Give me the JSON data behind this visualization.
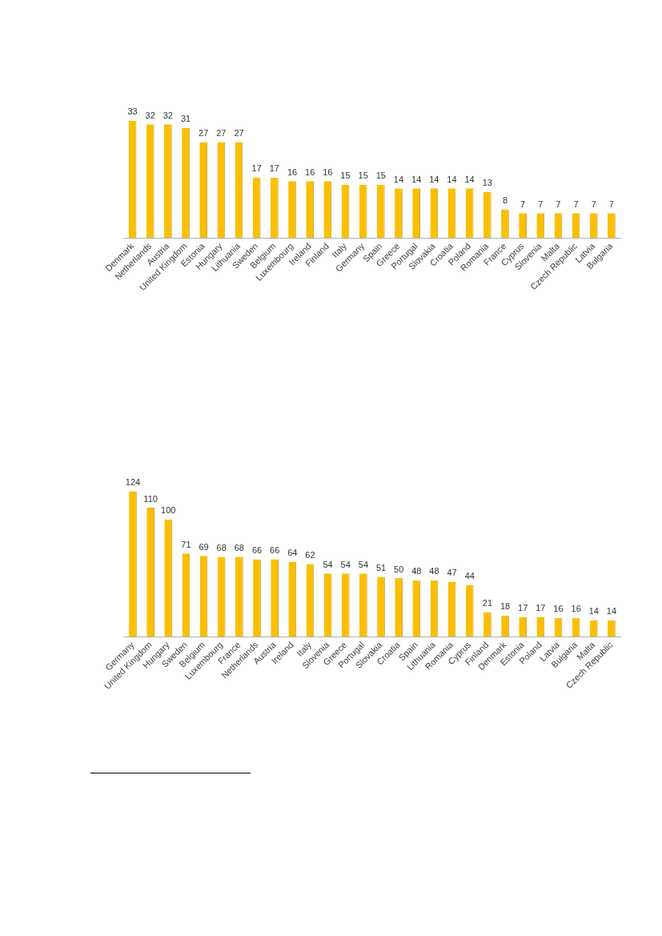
{
  "chart_data": [
    {
      "type": "bar",
      "categories": [
        "Denmark",
        "Netherlands",
        "Austria",
        "United Kingdom",
        "Estonia",
        "Hungary",
        "Lithuania",
        "Sweden",
        "Belgium",
        "Luxembourg",
        "Ireland",
        "Finland",
        "Italy",
        "Germany",
        "Spain",
        "Greece",
        "Portugal",
        "Slovakia",
        "Croatia",
        "Poland",
        "Romania",
        "France",
        "Cyprus",
        "Slovenia",
        "Malta",
        "Czech Republic",
        "Latvia",
        "Bulgaria"
      ],
      "values": [
        33,
        32,
        32,
        31,
        27,
        27,
        27,
        17,
        17,
        16,
        16,
        16,
        15,
        15,
        15,
        14,
        14,
        14,
        14,
        14,
        13,
        8,
        7,
        7,
        7,
        7,
        7,
        7
      ],
      "color": "#fbbf00",
      "data_labels": true,
      "grid": false,
      "legend": false
    },
    {
      "type": "bar",
      "categories": [
        "Germany",
        "United Kingdom",
        "Hungary",
        "Sweden",
        "Belgium",
        "Luxembourg",
        "France",
        "Netherlands",
        "Austria",
        "Ireland",
        "Italy",
        "Slovenia",
        "Greece",
        "Portugal",
        "Slovakia",
        "Croatia",
        "Spain",
        "Lithuania",
        "Romania",
        "Cyprus",
        "Finland",
        "Denmark",
        "Estonia",
        "Poland",
        "Latvia",
        "Bulgaria",
        "Malta",
        "Czech Republic"
      ],
      "values": [
        124,
        110,
        100,
        71,
        69,
        68,
        68,
        66,
        66,
        64,
        62,
        54,
        54,
        54,
        51,
        50,
        48,
        48,
        47,
        44,
        21,
        18,
        17,
        17,
        16,
        16,
        14,
        14
      ],
      "color": "#fbbf00",
      "data_labels": true,
      "grid": false,
      "legend": false
    }
  ]
}
